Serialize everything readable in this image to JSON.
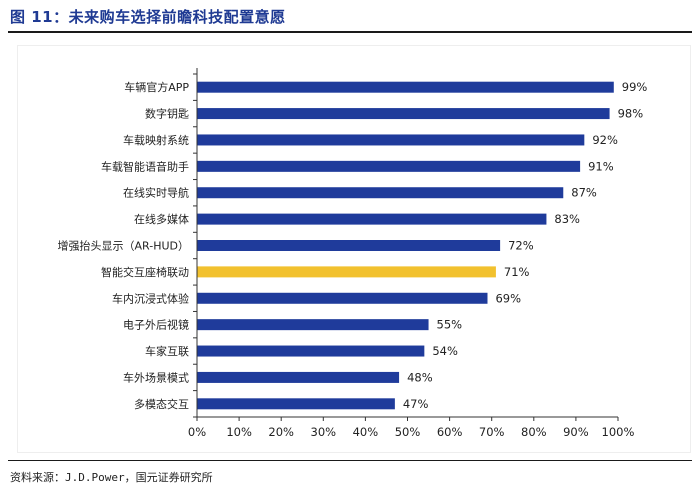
{
  "title": "图 11：未来购车选择前瞻科技配置意愿",
  "source": "资料来源：J.D.Power，国元证券研究所",
  "colors": {
    "bar": "#1f3b9b",
    "highlight": "#f2c12e",
    "title": "#1f3a93",
    "axis": "#333333"
  },
  "chart_data": {
    "type": "bar",
    "orientation": "horizontal",
    "categories": [
      "车辆官方APP",
      "数字钥匙",
      "车载映射系统",
      "车载智能语音助手",
      "在线实时导航",
      "在线多媒体",
      "增强抬头显示（AR-HUD）",
      "智能交互座椅联动",
      "车内沉浸式体验",
      "电子外后视镜",
      "车家互联",
      "车外场景模式",
      "多模态交互"
    ],
    "values": [
      99,
      98,
      92,
      91,
      87,
      83,
      72,
      71,
      69,
      55,
      54,
      48,
      47
    ],
    "data_labels": [
      "99%",
      "98%",
      "92%",
      "91%",
      "87%",
      "83%",
      "72%",
      "71%",
      "69%",
      "55%",
      "54%",
      "48%",
      "47%"
    ],
    "highlight_index": 7,
    "xlim": [
      0,
      100
    ],
    "xticks": [
      "0%",
      "10%",
      "20%",
      "30%",
      "40%",
      "50%",
      "60%",
      "70%",
      "80%",
      "90%",
      "100%"
    ],
    "grid": false,
    "legend": "none"
  }
}
